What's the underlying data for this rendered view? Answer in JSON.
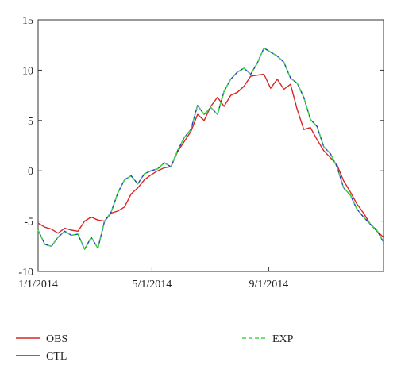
{
  "chart_data": {
    "type": "line",
    "x_axis": {
      "tick_labels": [
        "1/1/2014",
        "5/1/2014",
        "9/1/2014"
      ],
      "tick_dates": [
        "2014-01-01",
        "2014-05-01",
        "2014-09-01"
      ],
      "range": [
        "2014-01-01",
        "2014-12-31"
      ]
    },
    "y_axis": {
      "tick_labels": [
        "15",
        "10",
        "5",
        "0",
        "-5",
        "-10"
      ],
      "tick_values": [
        15,
        10,
        5,
        0,
        -5,
        -10
      ],
      "ylim": [
        -10,
        15
      ]
    },
    "grid": false,
    "legend_placement": "below",
    "series": [
      {
        "name": "OBS",
        "color": "#d62728",
        "style": "solid",
        "points": [
          [
            "2014-01-01",
            -5.2
          ],
          [
            "2014-01-08",
            -5.6
          ],
          [
            "2014-01-15",
            -5.8
          ],
          [
            "2014-01-22",
            -6.2
          ],
          [
            "2014-01-29",
            -5.7
          ],
          [
            "2014-02-05",
            -5.9
          ],
          [
            "2014-02-12",
            -6.0
          ],
          [
            "2014-02-19",
            -5.0
          ],
          [
            "2014-02-26",
            -4.6
          ],
          [
            "2014-03-05",
            -4.9
          ],
          [
            "2014-03-12",
            -5.0
          ],
          [
            "2014-03-19",
            -4.2
          ],
          [
            "2014-03-26",
            -4.0
          ],
          [
            "2014-04-02",
            -3.6
          ],
          [
            "2014-04-09",
            -2.3
          ],
          [
            "2014-04-16",
            -1.7
          ],
          [
            "2014-04-23",
            -0.9
          ],
          [
            "2014-04-30",
            -0.4
          ],
          [
            "2014-05-07",
            0.0
          ],
          [
            "2014-05-14",
            0.3
          ],
          [
            "2014-05-21",
            0.4
          ],
          [
            "2014-05-28",
            1.9
          ],
          [
            "2014-06-04",
            2.9
          ],
          [
            "2014-06-11",
            3.9
          ],
          [
            "2014-06-18",
            5.6
          ],
          [
            "2014-06-25",
            5.0
          ],
          [
            "2014-07-02",
            6.4
          ],
          [
            "2014-07-09",
            7.3
          ],
          [
            "2014-07-16",
            6.4
          ],
          [
            "2014-07-23",
            7.5
          ],
          [
            "2014-07-30",
            7.8
          ],
          [
            "2014-08-06",
            8.4
          ],
          [
            "2014-08-13",
            9.4
          ],
          [
            "2014-08-20",
            9.5
          ],
          [
            "2014-08-27",
            9.6
          ],
          [
            "2014-09-03",
            8.2
          ],
          [
            "2014-09-10",
            9.1
          ],
          [
            "2014-09-17",
            8.1
          ],
          [
            "2014-09-24",
            8.6
          ],
          [
            "2014-10-01",
            6.1
          ],
          [
            "2014-10-08",
            4.1
          ],
          [
            "2014-10-15",
            4.3
          ],
          [
            "2014-10-22",
            3.1
          ],
          [
            "2014-10-29",
            2.0
          ],
          [
            "2014-11-05",
            1.3
          ],
          [
            "2014-11-12",
            0.6
          ],
          [
            "2014-11-19",
            -1.0
          ],
          [
            "2014-11-26",
            -2.1
          ],
          [
            "2014-12-03",
            -3.3
          ],
          [
            "2014-12-10",
            -4.2
          ],
          [
            "2014-12-17",
            -5.3
          ],
          [
            "2014-12-24",
            -6.0
          ],
          [
            "2014-12-31",
            -6.6
          ]
        ]
      },
      {
        "name": "CTL",
        "color": "#1f3fbf",
        "style": "solid",
        "points": [
          [
            "2014-01-01",
            -5.9
          ],
          [
            "2014-01-08",
            -7.3
          ],
          [
            "2014-01-15",
            -7.5
          ],
          [
            "2014-01-22",
            -6.6
          ],
          [
            "2014-01-29",
            -6.0
          ],
          [
            "2014-02-05",
            -6.4
          ],
          [
            "2014-02-12",
            -6.3
          ],
          [
            "2014-02-19",
            -7.8
          ],
          [
            "2014-02-26",
            -6.6
          ],
          [
            "2014-03-05",
            -7.7
          ],
          [
            "2014-03-12",
            -5.0
          ],
          [
            "2014-03-19",
            -4.1
          ],
          [
            "2014-03-26",
            -2.2
          ],
          [
            "2014-04-02",
            -0.9
          ],
          [
            "2014-04-09",
            -0.5
          ],
          [
            "2014-04-16",
            -1.3
          ],
          [
            "2014-04-23",
            -0.3
          ],
          [
            "2014-04-30",
            0.0
          ],
          [
            "2014-05-07",
            0.2
          ],
          [
            "2014-05-14",
            0.8
          ],
          [
            "2014-05-21",
            0.4
          ],
          [
            "2014-05-28",
            2.0
          ],
          [
            "2014-06-04",
            3.3
          ],
          [
            "2014-06-11",
            4.1
          ],
          [
            "2014-06-18",
            6.5
          ],
          [
            "2014-06-25",
            5.6
          ],
          [
            "2014-07-02",
            6.3
          ],
          [
            "2014-07-09",
            5.6
          ],
          [
            "2014-07-16",
            7.9
          ],
          [
            "2014-07-23",
            9.1
          ],
          [
            "2014-07-30",
            9.8
          ],
          [
            "2014-08-06",
            10.2
          ],
          [
            "2014-08-13",
            9.6
          ],
          [
            "2014-08-20",
            10.7
          ],
          [
            "2014-08-27",
            12.2
          ],
          [
            "2014-09-03",
            11.8
          ],
          [
            "2014-09-10",
            11.4
          ],
          [
            "2014-09-17",
            10.8
          ],
          [
            "2014-09-24",
            9.2
          ],
          [
            "2014-10-01",
            8.7
          ],
          [
            "2014-10-08",
            7.3
          ],
          [
            "2014-10-15",
            5.1
          ],
          [
            "2014-10-22",
            4.4
          ],
          [
            "2014-10-29",
            2.4
          ],
          [
            "2014-11-05",
            1.7
          ],
          [
            "2014-11-12",
            0.4
          ],
          [
            "2014-11-19",
            -1.7
          ],
          [
            "2014-11-26",
            -2.4
          ],
          [
            "2014-12-03",
            -3.8
          ],
          [
            "2014-12-10",
            -4.6
          ],
          [
            "2014-12-17",
            -5.3
          ],
          [
            "2014-12-24",
            -5.9
          ],
          [
            "2014-12-31",
            -7.1
          ]
        ]
      },
      {
        "name": "EXP",
        "color": "#3ddc3d",
        "style": "dashed",
        "points": [
          [
            "2014-01-01",
            -5.9
          ],
          [
            "2014-01-08",
            -7.3
          ],
          [
            "2014-01-15",
            -7.5
          ],
          [
            "2014-01-22",
            -6.6
          ],
          [
            "2014-01-29",
            -6.0
          ],
          [
            "2014-02-05",
            -6.4
          ],
          [
            "2014-02-12",
            -6.3
          ],
          [
            "2014-02-19",
            -7.8
          ],
          [
            "2014-02-26",
            -6.6
          ],
          [
            "2014-03-05",
            -7.7
          ],
          [
            "2014-03-12",
            -5.0
          ],
          [
            "2014-03-19",
            -4.1
          ],
          [
            "2014-03-26",
            -2.2
          ],
          [
            "2014-04-02",
            -0.9
          ],
          [
            "2014-04-09",
            -0.5
          ],
          [
            "2014-04-16",
            -1.3
          ],
          [
            "2014-04-23",
            -0.3
          ],
          [
            "2014-04-30",
            0.0
          ],
          [
            "2014-05-07",
            0.2
          ],
          [
            "2014-05-14",
            0.8
          ],
          [
            "2014-05-21",
            0.4
          ],
          [
            "2014-05-28",
            2.0
          ],
          [
            "2014-06-04",
            3.3
          ],
          [
            "2014-06-11",
            4.1
          ],
          [
            "2014-06-18",
            6.5
          ],
          [
            "2014-06-25",
            5.6
          ],
          [
            "2014-07-02",
            6.3
          ],
          [
            "2014-07-09",
            5.6
          ],
          [
            "2014-07-16",
            7.9
          ],
          [
            "2014-07-23",
            9.1
          ],
          [
            "2014-07-30",
            9.8
          ],
          [
            "2014-08-06",
            10.2
          ],
          [
            "2014-08-13",
            9.6
          ],
          [
            "2014-08-20",
            10.7
          ],
          [
            "2014-08-27",
            12.2
          ],
          [
            "2014-09-03",
            11.8
          ],
          [
            "2014-09-10",
            11.4
          ],
          [
            "2014-09-17",
            10.8
          ],
          [
            "2014-09-24",
            9.2
          ],
          [
            "2014-10-01",
            8.7
          ],
          [
            "2014-10-08",
            7.3
          ],
          [
            "2014-10-15",
            5.1
          ],
          [
            "2014-10-22",
            4.4
          ],
          [
            "2014-10-29",
            2.4
          ],
          [
            "2014-11-05",
            1.7
          ],
          [
            "2014-11-12",
            0.4
          ],
          [
            "2014-11-19",
            -1.7
          ],
          [
            "2014-11-26",
            -2.4
          ],
          [
            "2014-12-03",
            -3.8
          ],
          [
            "2014-12-10",
            -4.6
          ],
          [
            "2014-12-17",
            -5.3
          ],
          [
            "2014-12-24",
            -5.9
          ],
          [
            "2014-12-31",
            -7.1
          ]
        ]
      }
    ]
  }
}
